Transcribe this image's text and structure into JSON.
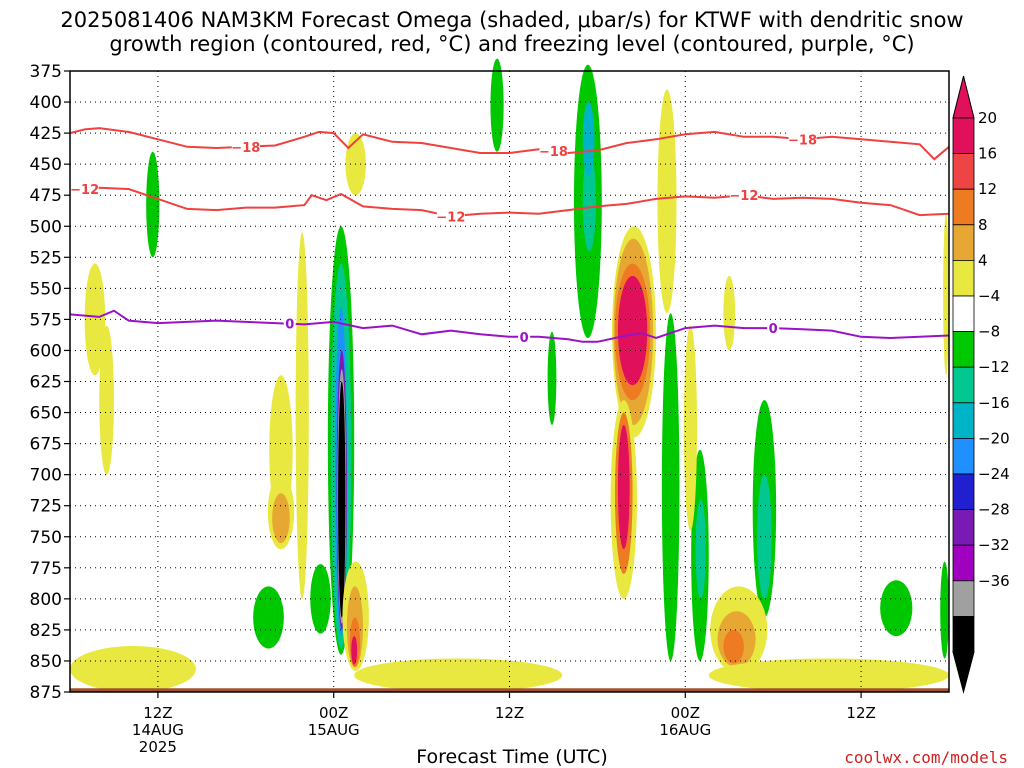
{
  "title_line1": "2025081406 NAM3KM Forecast Omega (shaded, μbar/s) for KTWF with dendritic snow",
  "title_line2": "growth region (contoured, red, °C) and freezing level (contoured, purple, °C)",
  "credit": "coolwx.com/models",
  "chart_data": {
    "type": "contour",
    "title": "2025081406 NAM3KM Forecast Omega (shaded, μbar/s) for KTWF with dendritic snow growth region (contoured, red, °C) and freezing level (contoured, purple, °C)",
    "xlabel": "Forecast Time (UTC)",
    "ylabel": "",
    "y_axis": {
      "unit": "hPa",
      "inverted": true,
      "range": [
        875,
        375
      ],
      "ticks": [
        375,
        400,
        425,
        450,
        475,
        500,
        525,
        550,
        575,
        600,
        625,
        650,
        675,
        700,
        725,
        750,
        775,
        800,
        825,
        850,
        875
      ]
    },
    "x_axis": {
      "range_hours_from_init": [
        0,
        60
      ],
      "ticks": [
        {
          "hour": 6,
          "lines": [
            "12Z",
            "14AUG",
            "2025"
          ]
        },
        {
          "hour": 18,
          "lines": [
            "00Z",
            "15AUG"
          ]
        },
        {
          "hour": 30,
          "lines": [
            "12Z"
          ]
        },
        {
          "hour": 42,
          "lines": [
            "00Z",
            "16AUG"
          ]
        },
        {
          "hour": 54,
          "lines": [
            "12Z"
          ]
        }
      ]
    },
    "grid": true,
    "colorbar": {
      "labels": [
        "20",
        "16",
        "12",
        "8",
        "4",
        "−4",
        "−8",
        "−12",
        "−16",
        "−20",
        "−24",
        "−28",
        "−32",
        "−36"
      ],
      "colors": [
        "#e0105a",
        "#ee4444",
        "#ee7a22",
        "#e6a832",
        "#e8e840",
        "#ffffff",
        "#00c800",
        "#00c890",
        "#00b4c8",
        "#1e90ff",
        "#2020d0",
        "#7a1ab4",
        "#a000c0",
        "#a0a0a0",
        "#000000"
      ],
      "top_arrow_color": "#e0105a",
      "bottom_arrow_color": "#000000"
    },
    "series": [
      {
        "name": "-18",
        "color": "#f04040",
        "x": [
          0,
          1,
          2,
          4,
          6,
          8,
          10,
          12,
          14,
          16,
          17,
          18,
          19,
          20,
          22,
          24,
          26,
          28,
          30,
          32,
          34,
          36,
          38,
          40,
          42,
          44,
          46,
          48,
          50,
          52,
          54,
          56,
          58,
          59,
          60
        ],
        "y": [
          425,
          422,
          421,
          424,
          430,
          436,
          437,
          436,
          435,
          428,
          424,
          425,
          437,
          426,
          432,
          433,
          437,
          441,
          441,
          438,
          441,
          439,
          433,
          430,
          426,
          424,
          428,
          428,
          430,
          428,
          430,
          432,
          434,
          446,
          436
        ],
        "labels": [
          {
            "x": 12,
            "text": "−18"
          },
          {
            "x": 33,
            "text": "−18"
          },
          {
            "x": 50,
            "text": "−18"
          }
        ]
      },
      {
        "name": "-12",
        "color": "#f04040",
        "x": [
          0,
          1,
          2,
          4,
          6,
          8,
          10,
          12,
          14,
          16,
          16.5,
          17.5,
          18.5,
          20,
          22,
          24,
          26,
          28,
          30,
          32,
          34,
          36,
          38,
          40,
          42,
          44,
          46,
          48,
          50,
          52,
          54,
          56,
          58,
          60
        ],
        "y": [
          472,
          470,
          469,
          470,
          478,
          486,
          487,
          485,
          485,
          483,
          475,
          479,
          474,
          484,
          486,
          487,
          492,
          490,
          489,
          490,
          487,
          484,
          482,
          478,
          476,
          477,
          475,
          478,
          477,
          478,
          481,
          483,
          491,
          490
        ],
        "labels": [
          {
            "x": 1,
            "text": "−12"
          },
          {
            "x": 26,
            "text": "−12"
          },
          {
            "x": 46,
            "text": "−12"
          }
        ]
      },
      {
        "name": "0",
        "color": "#9a12c8",
        "x": [
          0,
          2,
          3,
          4,
          6,
          8,
          10,
          12,
          14,
          16,
          18,
          20,
          22,
          24,
          26,
          28,
          30,
          32,
          34,
          35,
          36,
          38,
          39,
          40,
          42,
          44,
          46,
          48,
          50,
          52,
          54,
          56,
          58,
          60
        ],
        "y": [
          571,
          573,
          568,
          576,
          578,
          577,
          576,
          577,
          578,
          579,
          577,
          582,
          580,
          587,
          584,
          587,
          589,
          589,
          591,
          593,
          593,
          588,
          586,
          590,
          582,
          580,
          582,
          582,
          583,
          584,
          589,
          590,
          589,
          588
        ],
        "labels": [
          {
            "x": 15,
            "text": "0"
          },
          {
            "x": 31,
            "text": "0"
          },
          {
            "x": 48,
            "text": "0"
          }
        ]
      }
    ],
    "shaded_regions": [
      {
        "level": -4,
        "color": "#00c800",
        "x": [
          5.2,
          6.1
        ],
        "p": [
          440,
          525
        ]
      },
      {
        "level": -4,
        "color": "#00c800",
        "x": [
          28.7,
          29.6
        ],
        "p": [
          365,
          440
        ]
      },
      {
        "level": -4,
        "color": "#00c800",
        "x": [
          34.4,
          36.3
        ],
        "p": [
          370,
          590
        ]
      },
      {
        "level": -8,
        "color": "#00c890",
        "x": [
          35.0,
          35.9
        ],
        "p": [
          440,
          520
        ]
      },
      {
        "level": -12,
        "color": "#00b4c8",
        "x": [
          35.0,
          35.8
        ],
        "p": [
          400,
          460
        ]
      },
      {
        "level": -4,
        "color": "#00c800",
        "x": [
          17.6,
          19.4
        ],
        "p": [
          500,
          845
        ]
      },
      {
        "level": -8,
        "color": "#00c890",
        "x": [
          17.8,
          19.2
        ],
        "p": [
          530,
          840
        ]
      },
      {
        "level": -16,
        "color": "#1e90ff",
        "x": [
          18.1,
          18.9
        ],
        "p": [
          565,
          830
        ]
      },
      {
        "level": -28,
        "color": "#7a1ab4",
        "x": [
          18.2,
          18.9
        ],
        "p": [
          600,
          825
        ]
      },
      {
        "level": -32,
        "color": "#a0a0a0",
        "x": [
          18.25,
          18.85
        ],
        "p": [
          615,
          820
        ]
      },
      {
        "level": -36,
        "color": "#000000",
        "x": [
          18.3,
          18.8
        ],
        "p": [
          625,
          815
        ]
      },
      {
        "level": -4,
        "color": "#00c800",
        "x": [
          12.5,
          14.6
        ],
        "p": [
          790,
          840
        ]
      },
      {
        "level": -4,
        "color": "#00c800",
        "x": [
          16.4,
          17.8
        ],
        "p": [
          772,
          828
        ]
      },
      {
        "level": -4,
        "color": "#00c800",
        "x": [
          32.6,
          33.2
        ],
        "p": [
          585,
          660
        ]
      },
      {
        "level": -4,
        "color": "#00c800",
        "x": [
          40.4,
          41.6
        ],
        "p": [
          570,
          850
        ]
      },
      {
        "level": -4,
        "color": "#00c800",
        "x": [
          42.4,
          43.6
        ],
        "p": [
          680,
          850
        ]
      },
      {
        "level": -8,
        "color": "#00c890",
        "x": [
          42.7,
          43.4
        ],
        "p": [
          720,
          800
        ]
      },
      {
        "level": -4,
        "color": "#00c800",
        "x": [
          46.6,
          48.2
        ],
        "p": [
          640,
          815
        ]
      },
      {
        "level": -8,
        "color": "#00c890",
        "x": [
          46.9,
          47.9
        ],
        "p": [
          700,
          800
        ]
      },
      {
        "level": -4,
        "color": "#00c800",
        "x": [
          55.3,
          57.5
        ],
        "p": [
          785,
          830
        ]
      },
      {
        "level": -4,
        "color": "#00c800",
        "x": [
          59.4,
          60.0
        ],
        "p": [
          770,
          848
        ]
      },
      {
        "level": 4,
        "color": "#e8e840",
        "x": [
          18.6,
          20.4
        ],
        "p": [
          770,
          858
        ]
      },
      {
        "level": 8,
        "color": "#e6a832",
        "x": [
          18.9,
          20.0
        ],
        "p": [
          790,
          855
        ]
      },
      {
        "level": 12,
        "color": "#ee7a22",
        "x": [
          19.1,
          19.8
        ],
        "p": [
          815,
          855
        ]
      },
      {
        "level": 20,
        "color": "#e0105a",
        "x": [
          19.2,
          19.6
        ],
        "p": [
          830,
          853
        ]
      },
      {
        "level": 4,
        "color": "#e8e840",
        "x": [
          37.0,
          40.0
        ],
        "p": [
          500,
          670
        ]
      },
      {
        "level": 8,
        "color": "#e6a832",
        "x": [
          37.1,
          39.8
        ],
        "p": [
          510,
          660
        ]
      },
      {
        "level": 12,
        "color": "#ee7a22",
        "x": [
          37.2,
          39.6
        ],
        "p": [
          530,
          640
        ]
      },
      {
        "level": 20,
        "color": "#e0105a",
        "x": [
          37.4,
          39.4
        ],
        "p": [
          540,
          628
        ]
      },
      {
        "level": 4,
        "color": "#e8e840",
        "x": [
          36.9,
          38.7
        ],
        "p": [
          640,
          800
        ]
      },
      {
        "level": 12,
        "color": "#ee7a22",
        "x": [
          37.2,
          38.4
        ],
        "p": [
          650,
          780
        ]
      },
      {
        "level": 20,
        "color": "#e0105a",
        "x": [
          37.4,
          38.2
        ],
        "p": [
          660,
          760
        ]
      },
      {
        "level": 4,
        "color": "#e8e840",
        "x": [
          43.7,
          47.6
        ],
        "p": [
          790,
          860
        ]
      },
      {
        "level": 8,
        "color": "#e6a832",
        "x": [
          44.2,
          46.8
        ],
        "p": [
          810,
          855
        ]
      },
      {
        "level": 12,
        "color": "#ee7a22",
        "x": [
          44.6,
          46.0
        ],
        "p": [
          825,
          852
        ]
      },
      {
        "level": 4,
        "color": "#e8e840",
        "x": [
          0.0,
          8.6
        ],
        "p": [
          838,
          875
        ]
      },
      {
        "level": 4,
        "color": "#e8e840",
        "x": [
          19.4,
          33.6
        ],
        "p": [
          848,
          875
        ]
      },
      {
        "level": 4,
        "color": "#e8e840",
        "x": [
          43.6,
          60.0
        ],
        "p": [
          848,
          875
        ]
      },
      {
        "level": 4,
        "color": "#e8e840",
        "x": [
          1.0,
          2.4
        ],
        "p": [
          530,
          620
        ]
      },
      {
        "level": 4,
        "color": "#e8e840",
        "x": [
          2.0,
          3.0
        ],
        "p": [
          580,
          700
        ]
      },
      {
        "level": 4,
        "color": "#e8e840",
        "x": [
          13.6,
          15.2
        ],
        "p": [
          620,
          740
        ]
      },
      {
        "level": 4,
        "color": "#e8e840",
        "x": [
          15.4,
          16.3
        ],
        "p": [
          505,
          800
        ]
      },
      {
        "level": 4,
        "color": "#e8e840",
        "x": [
          13.5,
          15.3
        ],
        "p": [
          700,
          760
        ]
      },
      {
        "level": 8,
        "color": "#e6a832",
        "x": [
          13.8,
          15.0
        ],
        "p": [
          715,
          755
        ]
      },
      {
        "level": 4,
        "color": "#e8e840",
        "x": [
          18.8,
          20.2
        ],
        "p": [
          425,
          475
        ]
      },
      {
        "level": 4,
        "color": "#e8e840",
        "x": [
          40.1,
          41.4
        ],
        "p": [
          390,
          570
        ]
      },
      {
        "level": 4,
        "color": "#e8e840",
        "x": [
          41.9,
          42.8
        ],
        "p": [
          580,
          745
        ]
      },
      {
        "level": 4,
        "color": "#e8e840",
        "x": [
          44.6,
          45.4
        ],
        "p": [
          540,
          600
        ]
      },
      {
        "level": 4,
        "color": "#e8e840",
        "x": [
          59.6,
          60.0
        ],
        "p": [
          490,
          620
        ]
      }
    ]
  }
}
